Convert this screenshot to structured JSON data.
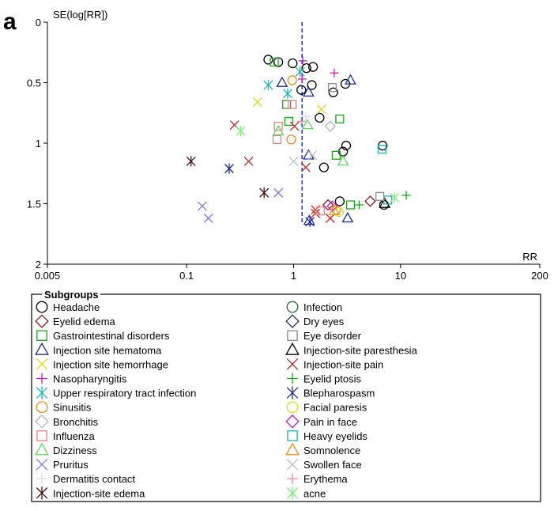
{
  "panel_label": "a",
  "colors": {
    "refline": "#2b3fd6",
    "axis": "#000000"
  },
  "chart_data": {
    "type": "scatter",
    "title": "",
    "xlabel": "RR",
    "ylabel": "SE(log[RR])",
    "x_scale": "log",
    "xlim": [
      0.005,
      200
    ],
    "ylim": [
      0,
      2
    ],
    "y_inverted": true,
    "x_ticks": [
      0.005,
      0.1,
      1,
      10,
      200
    ],
    "x_tick_labels": [
      "0.005",
      "0.1",
      "1",
      "10",
      "200"
    ],
    "y_ticks": [
      0,
      0.5,
      1,
      1.5,
      2
    ],
    "y_tick_labels": [
      "0",
      "0.5",
      "1",
      "1.5",
      "2"
    ],
    "reference_line_x": 1.2,
    "grid": false,
    "legend_position": "bottom",
    "legend_title": "Subgroups",
    "series": [
      {
        "name": "Headache",
        "marker": "circle",
        "color": "#000000",
        "points": [
          [
            0.58,
            0.31
          ],
          [
            0.72,
            0.33
          ],
          [
            0.98,
            0.34
          ],
          [
            1.52,
            0.37
          ],
          [
            1.32,
            0.38
          ],
          [
            1.48,
            0.52
          ],
          [
            1.18,
            0.56
          ],
          [
            2.35,
            0.58
          ],
          [
            3.05,
            0.51
          ],
          [
            1.75,
            0.79
          ],
          [
            3.1,
            1.02
          ],
          [
            2.9,
            1.07
          ],
          [
            6.8,
            1.02
          ],
          [
            1.92,
            1.2
          ],
          [
            2.7,
            1.48
          ],
          [
            7.0,
            1.51
          ]
        ]
      },
      {
        "name": "Eyelid edema",
        "marker": "diamond",
        "color": "#8b1a1a",
        "points": [
          [
            2.1,
            1.51
          ],
          [
            5.2,
            1.48
          ]
        ]
      },
      {
        "name": "Gastrointestinal disorders",
        "marker": "square",
        "color": "#1aa31a",
        "points": [
          [
            0.66,
            0.33
          ],
          [
            0.86,
            0.68
          ],
          [
            0.9,
            0.82
          ],
          [
            2.7,
            0.8
          ],
          [
            2.5,
            1.1
          ],
          [
            3.4,
            1.51
          ]
        ]
      },
      {
        "name": "Injection site hematoma",
        "marker": "triangle",
        "color": "#1c2a9c",
        "points": [
          [
            0.78,
            0.5
          ],
          [
            1.38,
            0.58
          ],
          [
            3.4,
            0.48
          ],
          [
            1.38,
            1.1
          ],
          [
            3.2,
            1.62
          ],
          [
            1.4,
            1.64
          ]
        ]
      },
      {
        "name": "Injection site hemorrhage",
        "marker": "x",
        "color": "#e4d41c",
        "points": [
          [
            0.46,
            0.66
          ],
          [
            1.82,
            0.72
          ]
        ]
      },
      {
        "name": "Injection-site paresthesia",
        "marker": "triangle",
        "color": "#000000",
        "points": [
          [
            7.1,
            1.5
          ]
        ]
      },
      {
        "name": "Nasopharyngitis",
        "marker": "plus",
        "color": "#c21cb8",
        "points": [
          [
            1.22,
            0.32
          ],
          [
            1.2,
            0.47
          ],
          [
            2.4,
            0.42
          ]
        ]
      },
      {
        "name": "Injection-site pain",
        "marker": "x",
        "color": "#c42020",
        "points": [
          [
            0.28,
            0.85
          ],
          [
            0.38,
            1.15
          ],
          [
            1.02,
            0.86
          ],
          [
            1.3,
            1.2
          ],
          [
            1.6,
            1.58
          ],
          [
            2.2,
            1.62
          ],
          [
            1.6,
            1.55
          ]
        ]
      },
      {
        "name": "Upper respiratory tract infection",
        "marker": "asterisk",
        "color": "#1cb4b4",
        "points": [
          [
            0.58,
            0.52
          ],
          [
            0.88,
            0.59
          ],
          [
            1.15,
            0.41
          ]
        ]
      },
      {
        "name": "Eyelid ptosis",
        "marker": "plus",
        "color": "#1aa31a",
        "points": [
          [
            4.1,
            1.51
          ],
          [
            11.3,
            1.43
          ]
        ]
      },
      {
        "name": "Blepharospasm",
        "marker": "asterisk",
        "color": "#1c2a9c",
        "points": [
          [
            0.25,
            1.21
          ],
          [
            1.42,
            1.65
          ]
        ]
      },
      {
        "name": "Sinusitis",
        "marker": "circle",
        "color": "#f08c1c",
        "points": [
          [
            0.97,
            0.48
          ],
          [
            0.95,
            0.97
          ],
          [
            2.5,
            1.55
          ]
        ]
      },
      {
        "name": "Facial paresis",
        "marker": "circle",
        "color": "#e8d81c",
        "points": [
          [
            2.65,
            1.57
          ]
        ]
      },
      {
        "name": "Bronchitis",
        "marker": "diamond",
        "color": "#b4b4b4",
        "points": [
          [
            2.2,
            0.86
          ]
        ]
      },
      {
        "name": "Pain in face",
        "marker": "diamond",
        "color": "#c21cb8",
        "points": [
          [
            2.3,
            1.52
          ]
        ]
      },
      {
        "name": "Influenza",
        "marker": "square",
        "color": "#e88080",
        "points": [
          [
            0.72,
            0.86
          ],
          [
            0.7,
            0.97
          ],
          [
            0.97,
            0.68
          ],
          [
            1.78,
            1.56
          ]
        ]
      },
      {
        "name": "Heavy eyelids",
        "marker": "square",
        "color": "#1cb4b4",
        "points": [
          [
            6.7,
            1.05
          ],
          [
            7.6,
            1.47
          ]
        ]
      },
      {
        "name": "Dizziness",
        "marker": "triangle",
        "color": "#5cd85c",
        "points": [
          [
            0.72,
            0.9
          ],
          [
            1.35,
            0.85
          ],
          [
            2.9,
            1.15
          ]
        ]
      },
      {
        "name": "Somnolence",
        "marker": "triangle",
        "color": "#f08c1c",
        "points": [
          [
            2.4,
            1.56
          ]
        ]
      },
      {
        "name": "Pruritus",
        "marker": "x",
        "color": "#7a7ae0",
        "points": [
          [
            0.14,
            1.52
          ],
          [
            0.16,
            1.62
          ],
          [
            0.72,
            1.41
          ]
        ]
      },
      {
        "name": "Swollen face",
        "marker": "x",
        "color": "#bdbdbd",
        "points": [
          [
            1.0,
            1.15
          ],
          [
            1.5,
            1.1
          ]
        ]
      },
      {
        "name": "Dermatitis contact",
        "marker": "plus",
        "color": "#d8d8ee",
        "points": [
          [
            1.3,
            0.78
          ]
        ]
      },
      {
        "name": "Erythema",
        "marker": "plus",
        "color": "#f08a8a",
        "points": [
          [
            1.18,
            0.82
          ]
        ]
      },
      {
        "name": "Injection-site edema",
        "marker": "asterisk",
        "color": "#4a0a0a",
        "points": [
          [
            0.11,
            1.15
          ],
          [
            0.53,
            1.41
          ]
        ]
      },
      {
        "name": "acne",
        "marker": "asterisk",
        "color": "#7aee7a",
        "points": [
          [
            0.32,
            0.9
          ],
          [
            8.8,
            1.45
          ]
        ]
      },
      {
        "name": "Infection",
        "marker": "circle",
        "color": "#1a6a2a",
        "points": []
      },
      {
        "name": "Dry eyes",
        "marker": "diamond",
        "color": "#1c2a5c",
        "points": []
      },
      {
        "name": "Eye disorder",
        "marker": "square",
        "color": "#8a8a8a",
        "points": [
          [
            2.3,
            0.54
          ],
          [
            6.4,
            1.44
          ]
        ]
      }
    ],
    "legend_order": [
      [
        "Headache",
        "Infection"
      ],
      [
        "Eyelid edema",
        "Dry eyes"
      ],
      [
        "Gastrointestinal disorders",
        "Eye disorder"
      ],
      [
        "Injection site hematoma",
        "Injection-site paresthesia"
      ],
      [
        "Injection site hemorrhage",
        "Injection-site pain"
      ],
      [
        "Nasopharyngitis",
        "Eyelid ptosis"
      ],
      [
        "Upper respiratory tract infection",
        "Blepharospasm"
      ],
      [
        "Sinusitis",
        "Facial paresis"
      ],
      [
        "Bronchitis",
        "Pain in face"
      ],
      [
        "Influenza",
        "Heavy eyelids"
      ],
      [
        "Dizziness",
        "Somnolence"
      ],
      [
        "Pruritus",
        "Swollen face"
      ],
      [
        "Dermatitis contact",
        "Erythema"
      ],
      [
        "Injection-site edema",
        "acne"
      ]
    ]
  }
}
